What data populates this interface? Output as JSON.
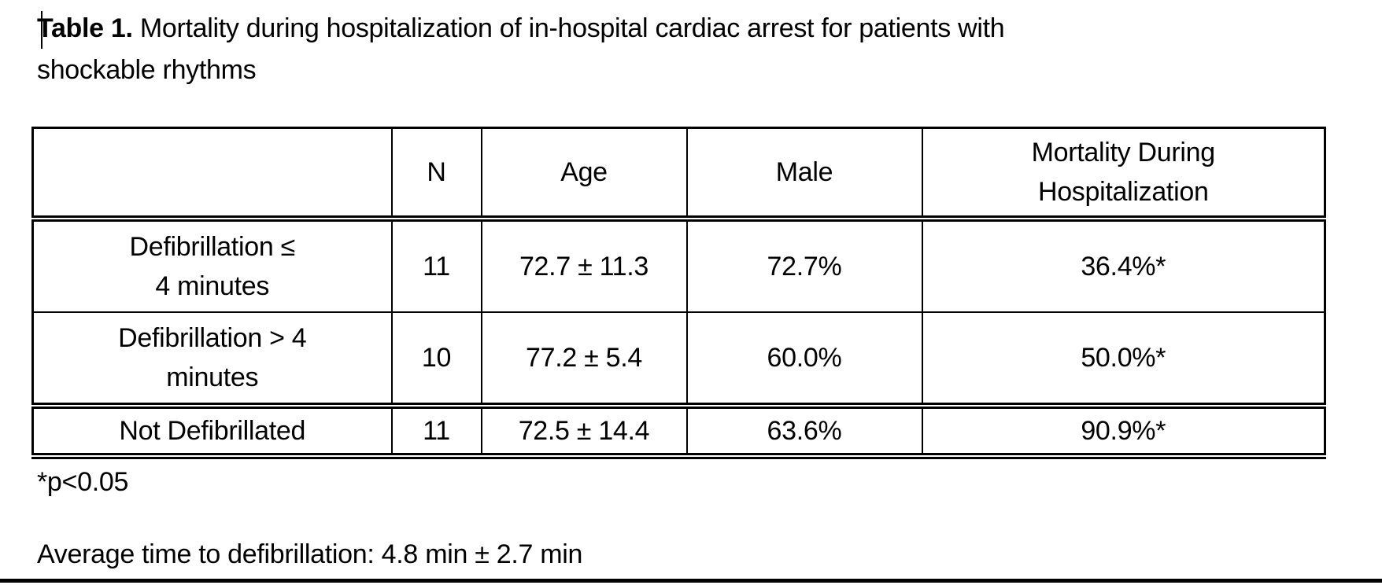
{
  "document": {
    "title": {
      "bold": "Table 1.",
      "rest": " Mortality during hospitalization of in-hospital cardiac arrest for patients with\nshockable rhythms"
    },
    "footnote": "*p<0.05",
    "average_note": "Average time to defibrillation: 4.8 min ± 2.7 min"
  },
  "table": {
    "columns": [
      "",
      "N",
      "Age",
      "Male",
      "Mortality During\nHospitalization"
    ],
    "rows": [
      {
        "group": "Defibrillation ≤\n4 minutes",
        "n": "11",
        "age": "72.7 ± 11.3",
        "male": "72.7%",
        "mortality": "36.4%*"
      },
      {
        "group": "Defibrillation > 4\nminutes",
        "n": "10",
        "age": "77.2 ± 5.4",
        "male": "60.0%",
        "mortality": "50.0%*"
      },
      {
        "group": "Not Defibrillated",
        "n": "11",
        "age": "72.5 ± 14.4",
        "male": "63.6%",
        "mortality": "90.9%*"
      }
    ]
  },
  "colors": {
    "text": "#000000",
    "border": "#000000",
    "page_background": "#ffffff"
  }
}
